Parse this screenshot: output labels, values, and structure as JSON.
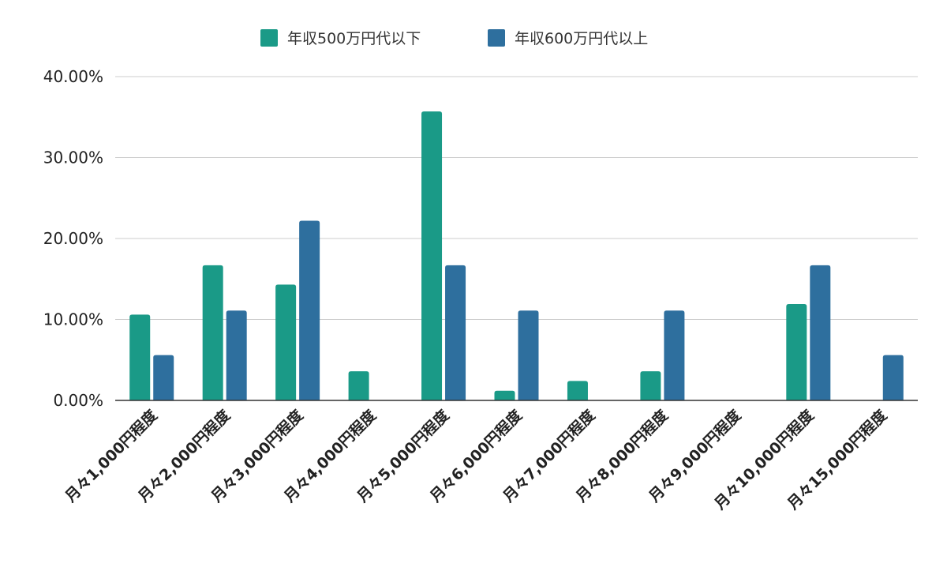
{
  "chart_data": {
    "type": "bar",
    "title": "",
    "xlabel": "",
    "ylabel": "",
    "ylim": [
      0,
      40
    ],
    "y_ticks": [
      "0.00%",
      "10.00%",
      "20.00%",
      "30.00%",
      "40.00%"
    ],
    "y_tick_values": [
      0,
      10,
      20,
      30,
      40
    ],
    "grid": true,
    "legend_position": "top-center",
    "categories": [
      "月々1,000円程度",
      "月々2,000円程度",
      "月々3,000円程度",
      "月々4,000円程度",
      "月々5,000円程度",
      "月々6,000円程度",
      "月々7,000円程度",
      "月々8,000円程度",
      "月々9,000円程度",
      "月々10,000円程度",
      "月々15,000円程度"
    ],
    "series": [
      {
        "name": "年収500万円代以下",
        "color": "#1a9a87",
        "values": [
          10.6,
          16.7,
          14.3,
          3.6,
          35.7,
          1.2,
          2.4,
          3.6,
          0,
          11.9,
          0
        ]
      },
      {
        "name": "年収600万円代以上",
        "color": "#2e6f9e",
        "values": [
          5.6,
          11.1,
          22.2,
          0,
          16.7,
          11.1,
          0,
          11.1,
          0,
          16.7,
          5.6
        ]
      }
    ]
  }
}
